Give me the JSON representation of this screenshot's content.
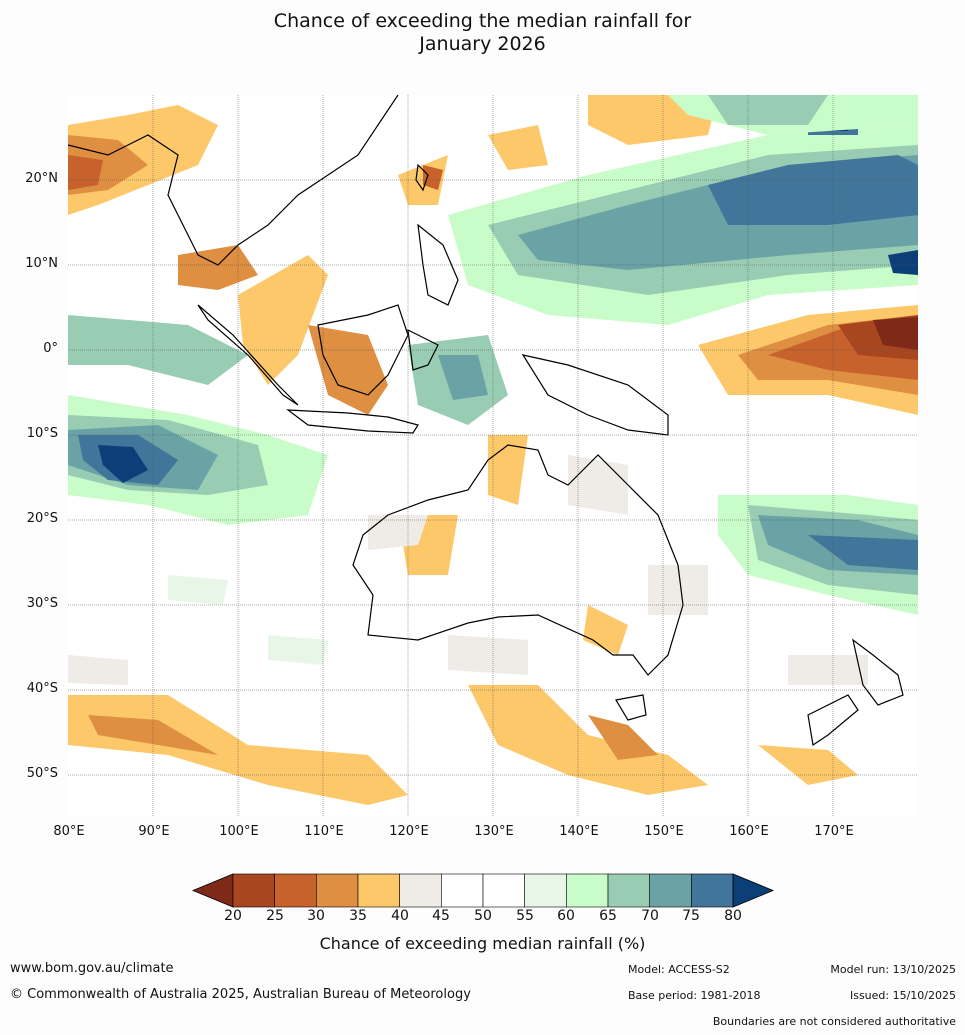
{
  "title": {
    "line1": "Chance of exceeding the median rainfall for",
    "line2": "January 2026"
  },
  "map": {
    "lat_labels": [
      "20°N",
      "10°N",
      "0°",
      "10°S",
      "20°S",
      "30°S",
      "40°S",
      "50°S"
    ],
    "lon_labels": [
      "80°E",
      "90°E",
      "100°E",
      "110°E",
      "120°E",
      "130°E",
      "140°E",
      "150°E",
      "160°E",
      "170°E"
    ],
    "lat_values": [
      20,
      10,
      0,
      -10,
      -20,
      -30,
      -40,
      -50
    ],
    "lon_values": [
      80,
      90,
      100,
      110,
      120,
      130,
      140,
      150,
      160,
      170
    ],
    "extent": {
      "lon_min": 80,
      "lon_max": 180,
      "lat_min": -55,
      "lat_max": 30
    }
  },
  "colorbar": {
    "ticks": [
      "20",
      "25",
      "30",
      "35",
      "40",
      "45",
      "50",
      "55",
      "60",
      "65",
      "70",
      "75",
      "80"
    ],
    "colors": [
      "#7f2a18",
      "#a8461f",
      "#c8622c",
      "#de8f42",
      "#fdc86a",
      "#efebe7",
      "#ffffff",
      "#ffffff",
      "#e8f6e8",
      "#c8fcc8",
      "#98cdb4",
      "#6aa2a6",
      "#41769a",
      "#0c3e78"
    ],
    "title": "Chance of exceeding median rainfall (%)"
  },
  "footer": {
    "website": "www.bom.gov.au/climate",
    "copyright": "© Commonwealth of Australia 2025, Australian Bureau of Meteorology",
    "model": "Model: ACCESS-S2",
    "base_period": "Base period: 1981-2018",
    "model_run": "Model run: 13/10/2025",
    "issued": "Issued: 15/10/2025",
    "disclaimer": "Boundaries are not considered authoritative"
  }
}
